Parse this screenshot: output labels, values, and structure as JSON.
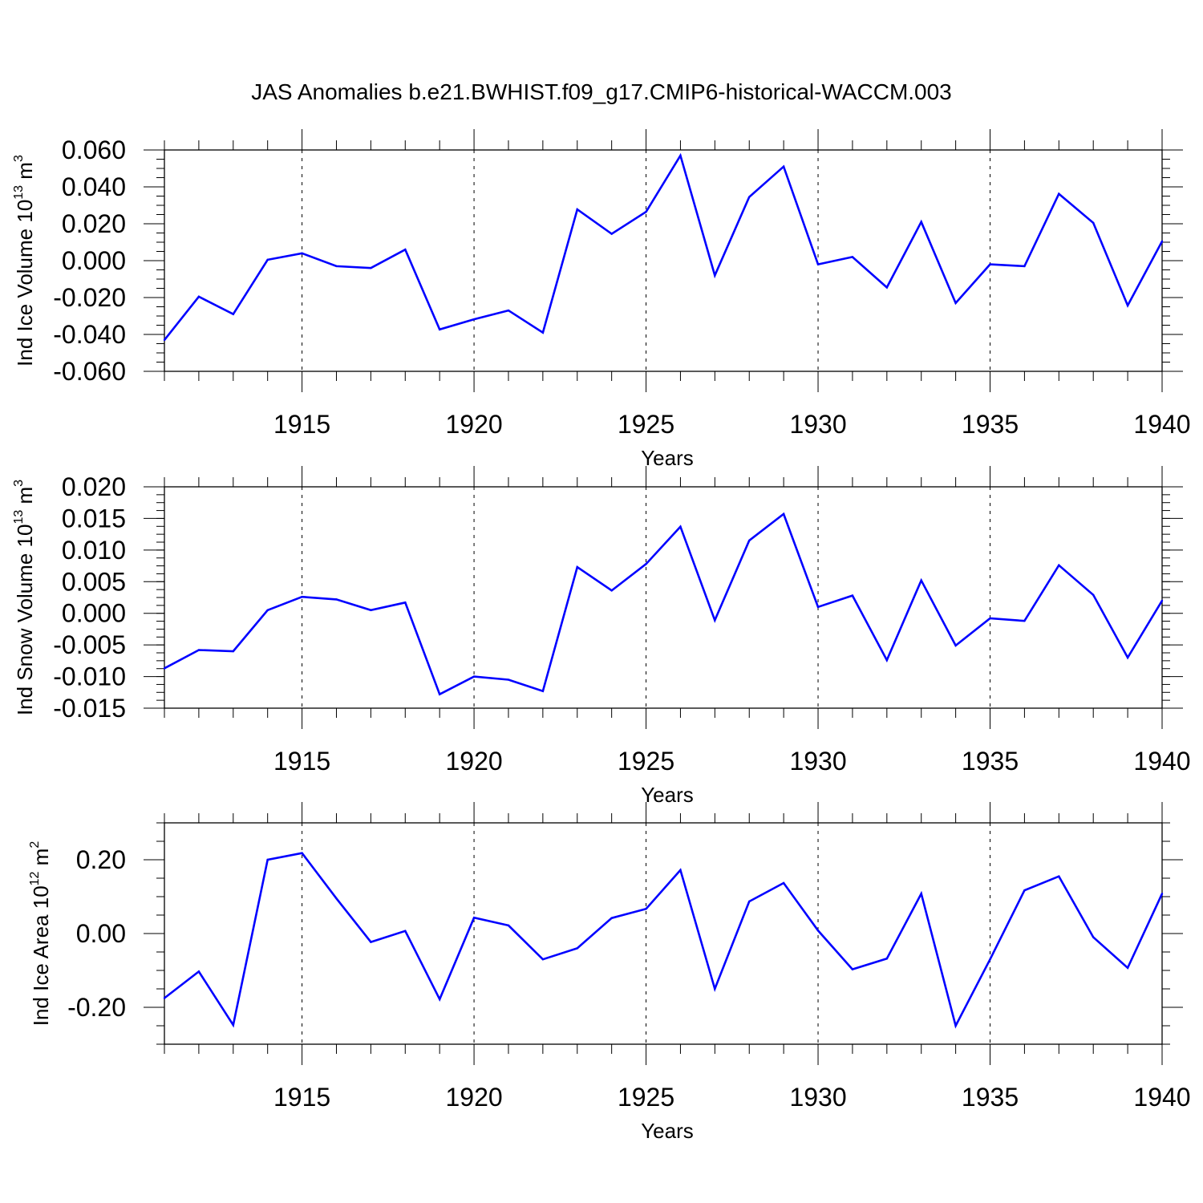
{
  "title": "JAS Anomalies b.e21.BWHIST.f09_g17.CMIP6-historical-WACCM.003",
  "colors": {
    "line": "#0000ff",
    "axis": "#000000",
    "grid": "#000000"
  },
  "chart_data": [
    {
      "type": "line",
      "xlabel": "Years",
      "ylabel": {
        "base": "Ind Ice Volume 10",
        "exp1": "13",
        "unit": " m",
        "exp2": "3"
      },
      "xlim": [
        1911,
        1940
      ],
      "ylim": [
        -0.06,
        0.06
      ],
      "xticks": [
        "1915",
        "1920",
        "1925",
        "1930",
        "1935",
        "1940"
      ],
      "yticks": [
        "-0.060",
        "-0.040",
        "-0.020",
        "0.000",
        "0.020",
        "0.040",
        "0.060"
      ],
      "grid": "dashed vertical at major x ticks",
      "x": [
        1911,
        1912,
        1913,
        1914,
        1915,
        1916,
        1917,
        1918,
        1919,
        1920,
        1921,
        1922,
        1923,
        1924,
        1925,
        1926,
        1927,
        1928,
        1929,
        1930,
        1931,
        1932,
        1933,
        1934,
        1935,
        1936,
        1937,
        1938,
        1939,
        1940
      ],
      "values": [
        -0.043,
        -0.0195,
        -0.029,
        0.0005,
        0.004,
        -0.003,
        -0.004,
        0.006,
        -0.0373,
        -0.0318,
        -0.027,
        -0.039,
        0.0278,
        0.0145,
        0.0265,
        0.057,
        -0.008,
        0.0345,
        0.051,
        -0.002,
        0.002,
        -0.0145,
        0.021,
        -0.023,
        -0.002,
        -0.003,
        0.0362,
        0.0205,
        -0.0243,
        0.0105
      ]
    },
    {
      "type": "line",
      "xlabel": "Years",
      "ylabel": {
        "base": "Ind Snow Volume 10",
        "exp1": "13",
        "unit": " m",
        "exp2": "3"
      },
      "xlim": [
        1911,
        1940
      ],
      "ylim": [
        -0.015,
        0.02
      ],
      "xticks": [
        "1915",
        "1920",
        "1925",
        "1930",
        "1935",
        "1940"
      ],
      "yticks": [
        "-0.015",
        "-0.010",
        "-0.005",
        "0.000",
        "0.005",
        "0.010",
        "0.015",
        "0.020"
      ],
      "grid": "dashed vertical at major x ticks",
      "x": [
        1911,
        1912,
        1913,
        1914,
        1915,
        1916,
        1917,
        1918,
        1919,
        1920,
        1921,
        1922,
        1923,
        1924,
        1925,
        1926,
        1927,
        1928,
        1929,
        1930,
        1931,
        1932,
        1933,
        1934,
        1935,
        1936,
        1937,
        1938,
        1939,
        1940
      ],
      "values": [
        -0.0087,
        -0.0058,
        -0.006,
        0.0005,
        0.0026,
        0.0022,
        0.0005,
        0.0017,
        -0.0128,
        -0.01,
        -0.0105,
        -0.0123,
        0.0073,
        0.0036,
        0.0078,
        0.0137,
        -0.0011,
        0.0115,
        0.0157,
        0.001,
        0.0028,
        -0.0074,
        0.0052,
        -0.0051,
        -0.0008,
        -0.0012,
        0.0076,
        0.0029,
        -0.007,
        0.002
      ]
    },
    {
      "type": "line",
      "xlabel": "Years",
      "ylabel": {
        "base": "Ind Ice Area 10",
        "exp1": "12",
        "unit": " m",
        "exp2": "2"
      },
      "xlim": [
        1911,
        1940
      ],
      "ylim": [
        -0.3,
        0.3
      ],
      "xticks": [
        "1915",
        "1920",
        "1925",
        "1930",
        "1935",
        "1940"
      ],
      "yticks": [
        "-0.20",
        "0.00",
        "0.20"
      ],
      "grid": "dashed vertical at major x ticks",
      "x": [
        1911,
        1912,
        1913,
        1914,
        1915,
        1916,
        1917,
        1918,
        1919,
        1920,
        1921,
        1922,
        1923,
        1924,
        1925,
        1926,
        1927,
        1928,
        1929,
        1930,
        1931,
        1932,
        1933,
        1934,
        1935,
        1936,
        1937,
        1938,
        1939,
        1940
      ],
      "values": [
        -0.175,
        -0.103,
        -0.248,
        0.2,
        0.218,
        0.095,
        -0.023,
        0.007,
        -0.178,
        0.043,
        0.022,
        -0.07,
        -0.04,
        0.042,
        0.067,
        0.172,
        -0.15,
        0.087,
        0.137,
        0.008,
        -0.097,
        -0.068,
        0.108,
        -0.25,
        -0.07,
        0.117,
        0.155,
        -0.01,
        -0.093,
        0.108
      ]
    }
  ]
}
